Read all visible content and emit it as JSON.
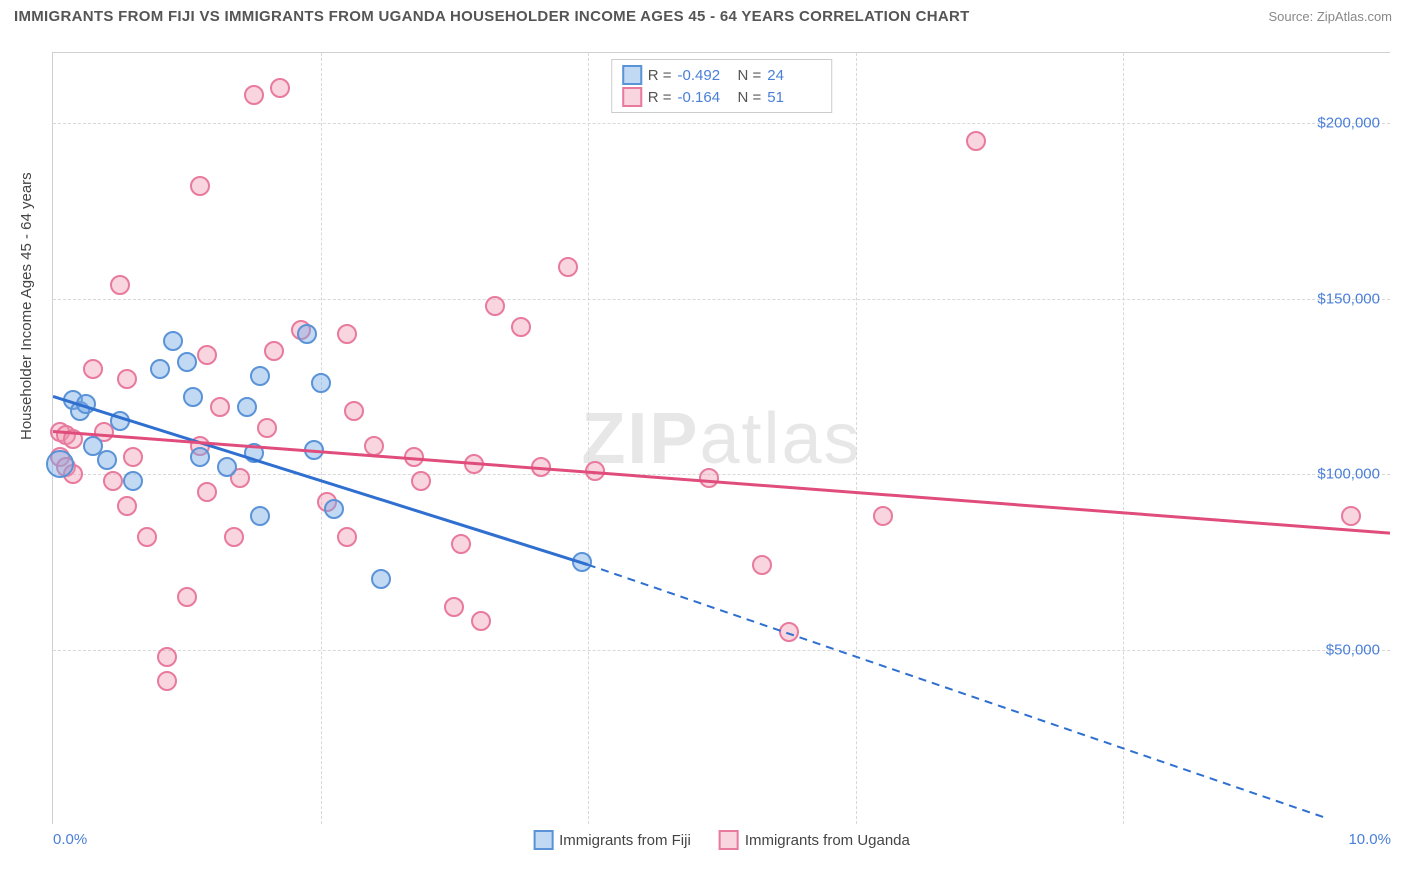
{
  "title": "IMMIGRANTS FROM FIJI VS IMMIGRANTS FROM UGANDA HOUSEHOLDER INCOME AGES 45 - 64 YEARS CORRELATION CHART",
  "source_label": "Source: ZipAtlas.com",
  "watermark_a": "ZIP",
  "watermark_b": "atlas",
  "y_axis_title": "Householder Income Ages 45 - 64 years",
  "colors": {
    "series_a_fill": "rgba(120,170,230,0.45)",
    "series_a_stroke": "#5a93d8",
    "series_b_fill": "rgba(240,150,175,0.40)",
    "series_b_stroke": "#e87a9d",
    "line_a": "#2e6fd0",
    "line_b": "#e04c7b",
    "grid": "#d8d8d8",
    "tick_text": "#4a7fd8"
  },
  "chart": {
    "type": "scatter",
    "xlim": [
      0.0,
      10.0
    ],
    "ylim": [
      0,
      220000
    ],
    "y_ticks": [
      50000,
      100000,
      150000,
      200000
    ],
    "y_tick_labels": [
      "$50,000",
      "$100,000",
      "$150,000",
      "$200,000"
    ],
    "x_ticks": [
      0.0,
      2.0,
      4.0,
      6.0,
      8.0,
      10.0
    ],
    "x_tick_labels": [
      "0.0%",
      "",
      "",
      "",
      "",
      "10.0%"
    ],
    "marker_radius": 10,
    "marker_radius_large": 14,
    "background_color": "#ffffff"
  },
  "series_a": {
    "name": "Immigrants from Fiji",
    "R_label": "R =",
    "R_value": "-0.492",
    "N_label": "N =",
    "N_value": "24",
    "trend": {
      "x1": 0.0,
      "y1": 122000,
      "x2": 4.0,
      "y2": 74000,
      "x2_ext": 9.5,
      "y2_ext": 2000
    },
    "points": [
      {
        "x": 0.15,
        "y": 121000
      },
      {
        "x": 0.2,
        "y": 118000
      },
      {
        "x": 0.25,
        "y": 120000
      },
      {
        "x": 0.05,
        "y": 103000,
        "r": 14
      },
      {
        "x": 0.3,
        "y": 108000
      },
      {
        "x": 0.9,
        "y": 138000
      },
      {
        "x": 0.8,
        "y": 130000
      },
      {
        "x": 1.0,
        "y": 132000
      },
      {
        "x": 1.05,
        "y": 122000
      },
      {
        "x": 1.55,
        "y": 128000
      },
      {
        "x": 1.45,
        "y": 119000
      },
      {
        "x": 1.1,
        "y": 105000
      },
      {
        "x": 1.5,
        "y": 106000
      },
      {
        "x": 1.55,
        "y": 88000
      },
      {
        "x": 1.9,
        "y": 140000
      },
      {
        "x": 2.0,
        "y": 126000
      },
      {
        "x": 1.95,
        "y": 107000
      },
      {
        "x": 2.1,
        "y": 90000
      },
      {
        "x": 2.45,
        "y": 70000
      },
      {
        "x": 0.5,
        "y": 115000
      },
      {
        "x": 0.4,
        "y": 104000
      },
      {
        "x": 0.6,
        "y": 98000
      },
      {
        "x": 3.95,
        "y": 75000
      },
      {
        "x": 1.3,
        "y": 102000
      }
    ]
  },
  "series_b": {
    "name": "Immigrants from Uganda",
    "R_label": "R =",
    "R_value": "-0.164",
    "N_label": "N =",
    "N_value": "51",
    "trend": {
      "x1": 0.0,
      "y1": 112000,
      "x2": 10.0,
      "y2": 83000
    },
    "points": [
      {
        "x": 0.05,
        "y": 112000
      },
      {
        "x": 0.1,
        "y": 111000
      },
      {
        "x": 0.15,
        "y": 110000
      },
      {
        "x": 0.05,
        "y": 105000
      },
      {
        "x": 0.1,
        "y": 102000
      },
      {
        "x": 0.15,
        "y": 100000
      },
      {
        "x": 0.3,
        "y": 130000
      },
      {
        "x": 0.55,
        "y": 127000
      },
      {
        "x": 0.5,
        "y": 154000
      },
      {
        "x": 0.6,
        "y": 105000
      },
      {
        "x": 0.45,
        "y": 98000
      },
      {
        "x": 0.55,
        "y": 91000
      },
      {
        "x": 0.7,
        "y": 82000
      },
      {
        "x": 0.85,
        "y": 48000
      },
      {
        "x": 0.85,
        "y": 41000
      },
      {
        "x": 1.0,
        "y": 65000
      },
      {
        "x": 1.1,
        "y": 182000
      },
      {
        "x": 1.15,
        "y": 134000
      },
      {
        "x": 1.25,
        "y": 119000
      },
      {
        "x": 1.1,
        "y": 108000
      },
      {
        "x": 1.15,
        "y": 95000
      },
      {
        "x": 1.35,
        "y": 82000
      },
      {
        "x": 1.5,
        "y": 208000
      },
      {
        "x": 1.7,
        "y": 210000
      },
      {
        "x": 1.65,
        "y": 135000
      },
      {
        "x": 1.6,
        "y": 113000
      },
      {
        "x": 1.85,
        "y": 141000
      },
      {
        "x": 2.2,
        "y": 140000
      },
      {
        "x": 2.25,
        "y": 118000
      },
      {
        "x": 2.4,
        "y": 108000
      },
      {
        "x": 2.2,
        "y": 82000
      },
      {
        "x": 2.7,
        "y": 105000
      },
      {
        "x": 2.75,
        "y": 98000
      },
      {
        "x": 3.15,
        "y": 103000
      },
      {
        "x": 3.05,
        "y": 80000
      },
      {
        "x": 3.0,
        "y": 62000
      },
      {
        "x": 3.2,
        "y": 58000
      },
      {
        "x": 3.3,
        "y": 148000
      },
      {
        "x": 3.5,
        "y": 142000
      },
      {
        "x": 3.65,
        "y": 102000
      },
      {
        "x": 3.85,
        "y": 159000
      },
      {
        "x": 4.05,
        "y": 101000
      },
      {
        "x": 4.9,
        "y": 99000
      },
      {
        "x": 5.3,
        "y": 74000
      },
      {
        "x": 5.5,
        "y": 55000
      },
      {
        "x": 6.2,
        "y": 88000
      },
      {
        "x": 6.9,
        "y": 195000
      },
      {
        "x": 9.7,
        "y": 88000
      },
      {
        "x": 0.38,
        "y": 112000
      },
      {
        "x": 1.4,
        "y": 99000
      },
      {
        "x": 2.05,
        "y": 92000
      }
    ]
  },
  "bottom_legend": {
    "a": "Immigrants from Fiji",
    "b": "Immigrants from Uganda"
  }
}
